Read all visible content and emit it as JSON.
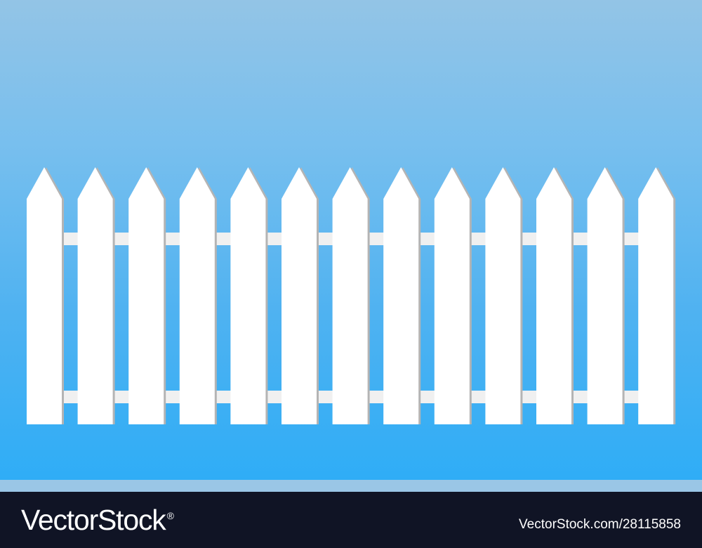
{
  "scene": {
    "sky_colors": [
      "#93c4e6",
      "#2fadf6"
    ],
    "fence": {
      "picket_count": 13,
      "rail_count": 2,
      "picket_color": "#ffffff",
      "shadow_color": "#b4b4b4",
      "rail_color": "#f0f0f0"
    }
  },
  "footer": {
    "brand_text": "VectorStock",
    "brand_mark": "®",
    "image_id_text": "VectorStock.com/28115858"
  }
}
